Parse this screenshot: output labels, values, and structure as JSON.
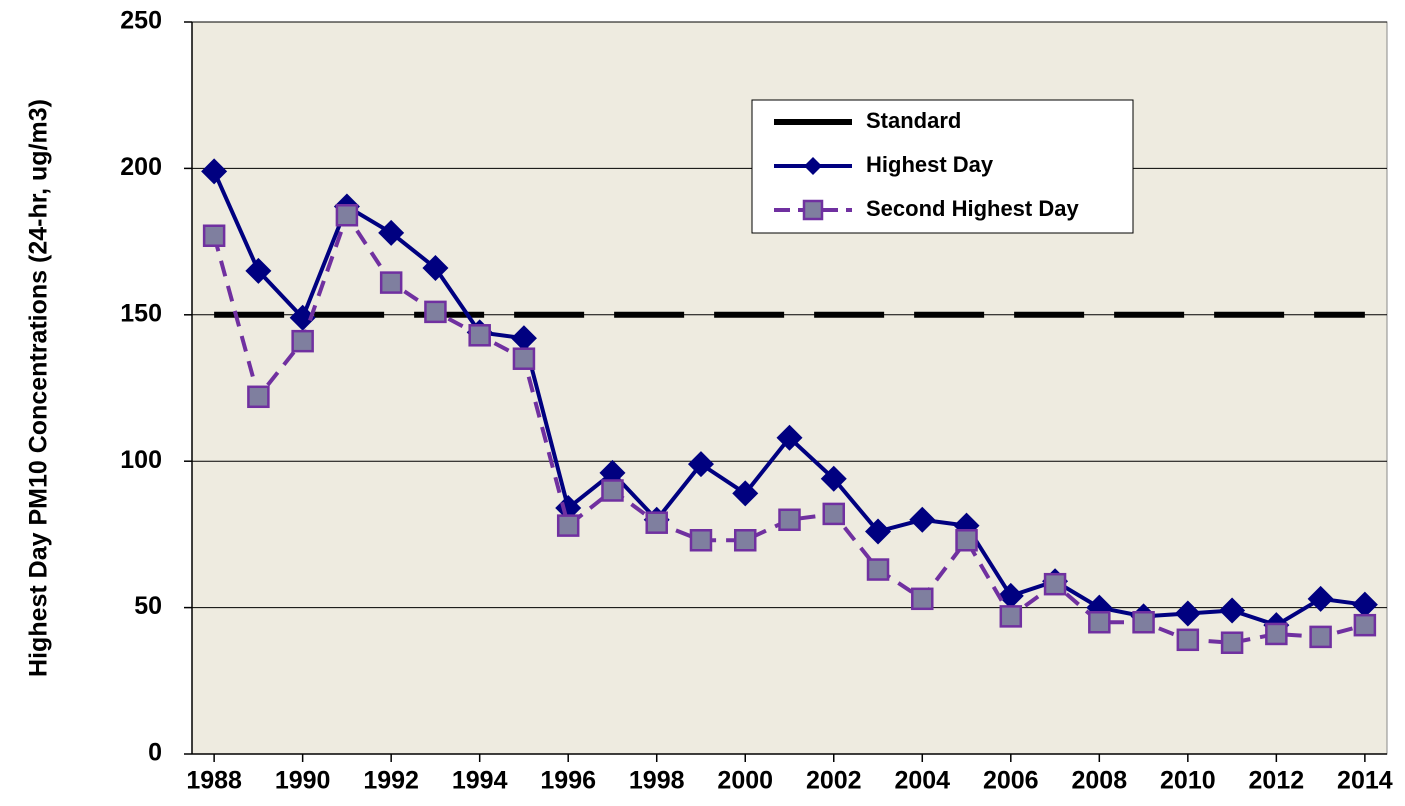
{
  "chart_data": {
    "type": "line",
    "y_label": "Highest Day PM10 Concentrations (24-hr, ug/m3)",
    "x": [
      1988,
      1989,
      1990,
      1991,
      1992,
      1993,
      1994,
      1995,
      1996,
      1997,
      1998,
      1999,
      2000,
      2001,
      2002,
      2003,
      2004,
      2005,
      2006,
      2007,
      2008,
      2009,
      2010,
      2011,
      2012,
      2013,
      2014
    ],
    "series": [
      {
        "name": "Standard",
        "color": "#000000",
        "style": "dashed",
        "marker": "none",
        "values": [
          150,
          150,
          150,
          150,
          150,
          150,
          150,
          150,
          150,
          150,
          150,
          150,
          150,
          150,
          150,
          150,
          150,
          150,
          150,
          150,
          150,
          150,
          150,
          150,
          150,
          150,
          150
        ]
      },
      {
        "name": "Highest Day",
        "color": "#000080",
        "style": "solid",
        "marker": "diamond",
        "values": [
          199,
          165,
          149,
          187,
          178,
          166,
          144,
          142,
          84,
          96,
          80,
          99,
          89,
          108,
          94,
          76,
          80,
          78,
          54,
          59,
          50,
          47,
          48,
          49,
          44,
          53,
          51
        ]
      },
      {
        "name": "Second Highest Day",
        "color": "#7030a0",
        "marker_fill": "#7f7f9f",
        "style": "dashed",
        "marker": "square",
        "values": [
          177,
          122,
          141,
          184,
          161,
          151,
          143,
          135,
          78,
          90,
          79,
          73,
          73,
          80,
          82,
          63,
          53,
          73,
          47,
          58,
          45,
          45,
          39,
          38,
          41,
          40,
          44
        ]
      }
    ],
    "xlim": [
      1987.5,
      2014.5
    ],
    "xticks": [
      1988,
      1990,
      1992,
      1994,
      1996,
      1998,
      2000,
      2002,
      2004,
      2006,
      2008,
      2010,
      2012,
      2014
    ],
    "ylim": [
      0,
      250
    ],
    "yticks": [
      0,
      50,
      100,
      150,
      200,
      250
    ],
    "grid": true,
    "background": "#eeebe0",
    "legend": "top-right"
  }
}
